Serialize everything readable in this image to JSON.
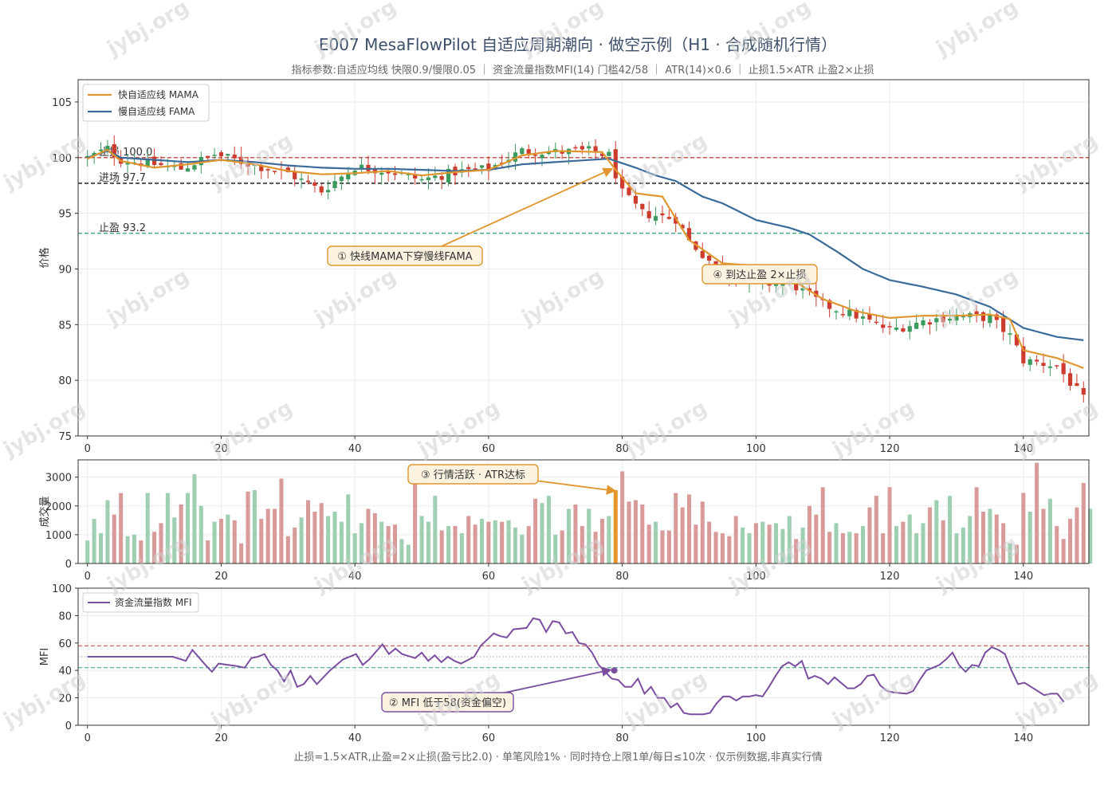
{
  "title": "E007 MesaFlowPilot 自适应周期潮向 · 做空示例（H1 · 合成随机行情）",
  "subtitle": "指标参数:自适应均线 快限0.9/慢限0.05 ｜ 资金流量指数MFI(14) 门槛42/58 ｜ ATR(14)×0.6 ｜ 止损1.5×ATR 止盈2×止损",
  "footer": "止损=1.5×ATR,止盈=2×止损(盈亏比2.0) · 单笔风险1% · 同时持仓上限1单/每日≤10次 · 仅示例数据,非真实行情",
  "watermark": "jybj.org",
  "colors": {
    "up": "#3a9b5c",
    "down": "#cc3b2e",
    "vol_up": "#9fcfb2",
    "vol_down": "#d99a9a",
    "vol_hl": "#e8952c",
    "mama": "#e0962e",
    "fama": "#3a6b9a",
    "mfi": "#7b4fa0",
    "stop": "#c0392b",
    "entry": "#333333",
    "target": "#2a9d7c"
  },
  "chart_data": [
    {
      "type": "candlestick",
      "ylabel": "价格",
      "xlim": [
        0,
        149
      ],
      "ylim": [
        75,
        107
      ],
      "xticks": [
        0,
        20,
        40,
        60,
        80,
        100,
        120,
        140
      ],
      "yticks": [
        75,
        80,
        85,
        90,
        95,
        100,
        105
      ],
      "legend": [
        "快自适应线 MAMA",
        "慢自适应线 FAMA"
      ],
      "close_anchors": [
        [
          0,
          100.0
        ],
        [
          3,
          100.8
        ],
        [
          5,
          99.8
        ],
        [
          10,
          99.4
        ],
        [
          14,
          99.0
        ],
        [
          19,
          100.3
        ],
        [
          25,
          99.3
        ],
        [
          30,
          98.6
        ],
        [
          35,
          97.0
        ],
        [
          40,
          99.2
        ],
        [
          45,
          98.8
        ],
        [
          50,
          98.0
        ],
        [
          55,
          98.7
        ],
        [
          60,
          99.0
        ],
        [
          65,
          100.6
        ],
        [
          70,
          100.5
        ],
        [
          75,
          100.6
        ],
        [
          78,
          100.2
        ],
        [
          80,
          96.8
        ],
        [
          83,
          95.0
        ],
        [
          88,
          94.5
        ],
        [
          90,
          92.5
        ],
        [
          95,
          89.6
        ],
        [
          100,
          88.6
        ],
        [
          105,
          88.8
        ],
        [
          110,
          86.8
        ],
        [
          115,
          85.8
        ],
        [
          120,
          84.5
        ],
        [
          125,
          85.3
        ],
        [
          130,
          85.8
        ],
        [
          135,
          85.6
        ],
        [
          138,
          84.0
        ],
        [
          140,
          81.8
        ],
        [
          145,
          81.3
        ],
        [
          149,
          78.3
        ]
      ],
      "mama_anchors": [
        [
          0,
          99.9
        ],
        [
          3,
          100.7
        ],
        [
          5,
          99.7
        ],
        [
          10,
          99.1
        ],
        [
          15,
          99.4
        ],
        [
          20,
          99.8
        ],
        [
          25,
          99.4
        ],
        [
          30,
          98.8
        ],
        [
          35,
          98.5
        ],
        [
          40,
          98.6
        ],
        [
          45,
          98.8
        ],
        [
          50,
          98.4
        ],
        [
          55,
          98.7
        ],
        [
          60,
          98.9
        ],
        [
          65,
          100.2
        ],
        [
          70,
          100.6
        ],
        [
          77,
          100.5
        ],
        [
          79,
          98.9
        ],
        [
          82,
          96.8
        ],
        [
          86,
          96.5
        ],
        [
          90,
          92.6
        ],
        [
          95,
          90.5
        ],
        [
          100,
          90.3
        ],
        [
          105,
          89.2
        ],
        [
          110,
          87.3
        ],
        [
          115,
          86.2
        ],
        [
          120,
          85.6
        ],
        [
          125,
          85.8
        ],
        [
          130,
          85.8
        ],
        [
          135,
          85.9
        ],
        [
          138,
          85.5
        ],
        [
          140,
          82.7
        ],
        [
          145,
          82.0
        ],
        [
          149,
          81.1
        ]
      ],
      "fama_anchors": [
        [
          0,
          100.0
        ],
        [
          3,
          100.6
        ],
        [
          5,
          100.0
        ],
        [
          10,
          99.8
        ],
        [
          15,
          99.6
        ],
        [
          20,
          99.8
        ],
        [
          25,
          99.6
        ],
        [
          30,
          99.3
        ],
        [
          35,
          99.1
        ],
        [
          40,
          99.0
        ],
        [
          45,
          99.0
        ],
        [
          50,
          98.9
        ],
        [
          55,
          98.8
        ],
        [
          60,
          98.9
        ],
        [
          65,
          99.4
        ],
        [
          70,
          99.6
        ],
        [
          78,
          99.9
        ],
        [
          82,
          99.1
        ],
        [
          85,
          98.4
        ],
        [
          88,
          97.9
        ],
        [
          92,
          96.5
        ],
        [
          95,
          95.9
        ],
        [
          100,
          94.4
        ],
        [
          105,
          93.7
        ],
        [
          108,
          93.1
        ],
        [
          112,
          91.6
        ],
        [
          116,
          90.0
        ],
        [
          120,
          89.0
        ],
        [
          125,
          88.4
        ],
        [
          130,
          87.7
        ],
        [
          135,
          86.6
        ],
        [
          140,
          84.7
        ],
        [
          145,
          83.9
        ],
        [
          149,
          83.6
        ]
      ],
      "levels": [
        {
          "value": 100.0,
          "label": "止损 100.0",
          "kind": "stop"
        },
        {
          "value": 97.7,
          "label": "进场 97.7",
          "kind": "entry"
        },
        {
          "value": 93.2,
          "label": "止盈 93.2",
          "kind": "target"
        }
      ]
    },
    {
      "type": "bar",
      "ylabel": "成交量",
      "xlim": [
        0,
        149
      ],
      "ylim": [
        0,
        3600
      ],
      "xticks": [
        0,
        20,
        40,
        60,
        80,
        100,
        120,
        140
      ],
      "yticks": [
        0,
        1000,
        2000,
        3000
      ],
      "highlight_index": 79,
      "values": [
        800,
        1550,
        1050,
        2200,
        1700,
        2450,
        950,
        1000,
        800,
        2450,
        1100,
        1400,
        2450,
        1600,
        2050,
        2450,
        3100,
        2000,
        800,
        1450,
        1550,
        1700,
        1500,
        700,
        2500,
        2550,
        1550,
        1900,
        1900,
        2950,
        950,
        1250,
        1600,
        2200,
        1800,
        2100,
        1650,
        1800,
        1450,
        2400,
        1050,
        1400,
        1900,
        1750,
        1450,
        1300,
        1350,
        850,
        650,
        2950,
        1650,
        1450,
        2350,
        1150,
        1300,
        1300,
        1050,
        1650,
        1350,
        1550,
        1450,
        1500,
        1450,
        1500,
        1250,
        1000,
        1300,
        2250,
        2100,
        2350,
        1000,
        1150,
        1900,
        2050,
        1300,
        1900,
        1100,
        1550,
        1650,
        2550,
        3200,
        2150,
        2200,
        2050,
        1350,
        1450,
        1150,
        1150,
        2450,
        1950,
        2400,
        1350,
        2150,
        1450,
        1100,
        1050,
        950,
        1650,
        1250,
        1050,
        1400,
        1450,
        1350,
        1400,
        1200,
        1650,
        850,
        1250,
        2000,
        1700,
        2650,
        1100,
        1400,
        1050,
        1100,
        1050,
        1300,
        1950,
        2350,
        1050,
        2650,
        1300,
        1450,
        1700,
        1050,
        1400,
        1950,
        2200,
        1500,
        2350,
        1050,
        1250,
        1650,
        2650,
        1800,
        1900,
        1700,
        1400,
        700,
        650,
        2450,
        1800,
        3500,
        1900,
        2250,
        1300,
        850,
        1550,
        1950,
        2800,
        1900
      ]
    },
    {
      "type": "line",
      "ylabel": "MFI",
      "xlim": [
        0,
        149
      ],
      "ylim": [
        0,
        100
      ],
      "xticks": [
        0,
        20,
        40,
        60,
        80,
        100,
        120,
        140
      ],
      "yticks": [
        0,
        20,
        40,
        60,
        80,
        100
      ],
      "legend": [
        "资金流量指数 MFI"
      ],
      "thresholds": [
        58,
        50,
        42
      ],
      "anchors": [
        [
          0,
          50
        ],
        [
          13,
          50
        ],
        [
          15,
          47
        ],
        [
          16,
          55
        ],
        [
          18,
          44
        ],
        [
          19,
          39
        ],
        [
          20,
          45
        ],
        [
          23,
          43
        ],
        [
          24,
          42
        ],
        [
          25,
          49
        ],
        [
          26,
          50
        ],
        [
          27,
          52
        ],
        [
          28,
          44
        ],
        [
          29,
          40
        ],
        [
          30,
          32
        ],
        [
          31,
          40
        ],
        [
          32,
          28
        ],
        [
          33,
          30
        ],
        [
          34,
          36
        ],
        [
          35,
          30
        ],
        [
          37,
          40
        ],
        [
          39,
          48
        ],
        [
          41,
          52
        ],
        [
          42,
          44
        ],
        [
          43,
          48
        ],
        [
          45,
          59
        ],
        [
          46,
          52
        ],
        [
          47,
          56
        ],
        [
          48,
          52
        ],
        [
          50,
          49
        ],
        [
          51,
          53
        ],
        [
          52,
          47
        ],
        [
          53,
          51
        ],
        [
          54,
          46
        ],
        [
          55,
          50
        ],
        [
          56,
          47
        ],
        [
          57,
          45
        ],
        [
          59,
          50
        ],
        [
          60,
          58
        ],
        [
          62,
          67
        ],
        [
          63,
          65
        ],
        [
          64,
          64
        ],
        [
          65,
          70
        ],
        [
          67,
          71
        ],
        [
          68,
          78
        ],
        [
          69,
          77
        ],
        [
          70,
          68
        ],
        [
          71,
          76
        ],
        [
          72,
          75
        ],
        [
          73,
          67
        ],
        [
          74,
          68
        ],
        [
          75,
          60
        ],
        [
          76,
          59
        ],
        [
          77,
          53
        ],
        [
          78,
          44
        ],
        [
          79,
          39
        ],
        [
          80,
          34
        ],
        [
          81,
          33
        ],
        [
          82,
          28
        ],
        [
          83,
          28
        ],
        [
          84,
          34
        ],
        [
          85,
          23
        ],
        [
          86,
          28
        ],
        [
          87,
          20
        ],
        [
          88,
          20
        ],
        [
          89,
          13
        ],
        [
          90,
          16
        ],
        [
          91,
          9
        ],
        [
          92,
          8
        ],
        [
          94,
          8
        ],
        [
          95,
          9
        ],
        [
          96,
          16
        ],
        [
          97,
          21
        ],
        [
          98,
          21
        ],
        [
          99,
          18
        ],
        [
          100,
          21
        ],
        [
          101,
          21
        ],
        [
          102,
          22
        ],
        [
          103,
          21
        ],
        [
          104,
          28
        ],
        [
          105,
          36
        ],
        [
          106,
          43
        ],
        [
          107,
          46
        ],
        [
          108,
          43
        ],
        [
          109,
          47
        ],
        [
          110,
          34
        ],
        [
          111,
          36
        ],
        [
          112,
          34
        ],
        [
          113,
          30
        ],
        [
          114,
          35
        ],
        [
          115,
          31
        ],
        [
          116,
          27
        ],
        [
          117,
          27
        ],
        [
          118,
          30
        ],
        [
          119,
          36
        ],
        [
          120,
          37
        ],
        [
          121,
          29
        ],
        [
          122,
          25
        ],
        [
          123,
          24
        ],
        [
          125,
          23
        ],
        [
          126,
          25
        ],
        [
          127,
          33
        ],
        [
          128,
          40
        ],
        [
          129,
          42
        ],
        [
          130,
          44
        ],
        [
          131,
          48
        ],
        [
          132,
          53
        ],
        [
          133,
          44
        ],
        [
          134,
          39
        ],
        [
          135,
          44
        ],
        [
          136,
          43
        ],
        [
          137,
          53
        ],
        [
          138,
          57
        ],
        [
          139,
          55
        ],
        [
          140,
          52
        ],
        [
          141,
          40
        ],
        [
          142,
          30
        ],
        [
          143,
          31
        ],
        [
          144,
          28
        ],
        [
          145,
          25
        ],
        [
          146,
          22
        ],
        [
          147,
          23
        ],
        [
          148,
          23
        ],
        [
          149,
          17
        ],
        [
          150,
          17
        ],
        [
          151,
          14
        ],
        [
          152,
          12
        ]
      ]
    }
  ],
  "annotations": [
    {
      "label": "① 快线MAMA下穿慢线FAMA"
    },
    {
      "label": "② MFI 低于58(资金偏空)"
    },
    {
      "label": "③ 行情活跃 · ATR达标"
    },
    {
      "label": "④ 到达止盈 2×止损"
    }
  ]
}
